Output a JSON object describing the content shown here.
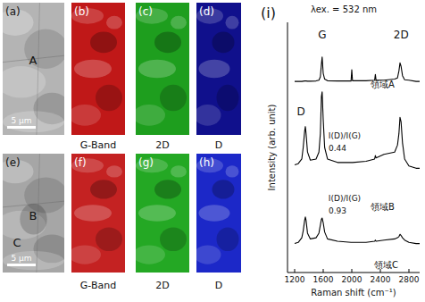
{
  "panels": [
    {
      "label": "(a)",
      "kind": "optical",
      "color": "#b4b4b4",
      "regions": [
        "A"
      ],
      "scale_bar": "5 μm"
    },
    {
      "label": "(b)",
      "kind": "map",
      "color": "#c01818",
      "caption": "G-Band"
    },
    {
      "label": "(c)",
      "kind": "map",
      "color": "#1e9e1e",
      "caption": "2D"
    },
    {
      "label": "(d)",
      "kind": "map",
      "color": "#10108c",
      "caption": "D"
    },
    {
      "label": "(e)",
      "kind": "optical",
      "color": "#a6a6a6",
      "regions": [
        "B",
        "C"
      ],
      "scale_bar": "5 μm"
    },
    {
      "label": "(f)",
      "kind": "map",
      "color": "#c42222",
      "caption": "G-Band"
    },
    {
      "label": "(g)",
      "kind": "map",
      "color": "#24a824",
      "caption": "2D"
    },
    {
      "label": "(h)",
      "kind": "map",
      "color": "#1c28c8",
      "caption": "D"
    }
  ],
  "chart_label": "(i)",
  "chart_data": {
    "type": "line",
    "title": "λex. = 532 nm",
    "x_label": "Raman shift (cm⁻¹)",
    "y_label": "Intensity (arb. unit)",
    "xlim": [
      1100,
      2950
    ],
    "ylim": [
      -0.8,
      10
    ],
    "xticks": [
      1200,
      1600,
      2000,
      2400,
      2800
    ],
    "tick_labels": "x",
    "x": [
      1200,
      1250,
      1300,
      1320,
      1340,
      1350,
      1360,
      1380,
      1420,
      1500,
      1540,
      1560,
      1575,
      1585,
      1600,
      1620,
      1660,
      1800,
      1990,
      2000,
      2010,
      2200,
      2320,
      2330,
      2340,
      2450,
      2600,
      2640,
      2660,
      2675,
      2690,
      2710,
      2740,
      2800,
      2900,
      2950
    ],
    "series": [
      {
        "color": "#000000",
        "values": [
          7.45,
          7.45,
          7.45,
          7.46,
          7.47,
          7.47,
          7.47,
          7.46,
          7.46,
          7.47,
          7.5,
          7.65,
          8.2,
          8.5,
          7.8,
          7.55,
          7.48,
          7.47,
          7.47,
          7.95,
          7.48,
          7.48,
          7.5,
          7.75,
          7.5,
          7.5,
          7.55,
          7.6,
          7.9,
          8.25,
          8.1,
          7.7,
          7.52,
          7.5,
          7.45,
          7.45
        ]
      },
      {
        "color": "#000000",
        "values": [
          3.85,
          3.9,
          4.1,
          4.6,
          5.3,
          5.5,
          5.2,
          4.4,
          4.05,
          4.1,
          4.4,
          5.2,
          6.8,
          7.0,
          5.8,
          4.6,
          4.1,
          3.95,
          3.95,
          3.95,
          3.95,
          4.0,
          4.1,
          4.25,
          4.15,
          4.3,
          4.4,
          4.7,
          5.2,
          5.9,
          5.7,
          4.8,
          4.1,
          3.8,
          3.7,
          3.7
        ]
      },
      {
        "color": "#000000",
        "values": [
          0.45,
          0.5,
          0.7,
          1.0,
          1.45,
          1.6,
          1.45,
          0.9,
          0.65,
          0.7,
          0.9,
          1.25,
          1.5,
          1.55,
          1.35,
          0.95,
          0.65,
          0.55,
          0.5,
          0.5,
          0.5,
          0.5,
          0.55,
          0.6,
          0.55,
          0.6,
          0.65,
          0.7,
          0.75,
          0.85,
          0.8,
          0.7,
          0.6,
          0.5,
          0.45,
          0.45
        ]
      }
    ],
    "annotations": [
      {
        "text": "G",
        "x": 1585,
        "y": 9.3
      },
      {
        "text": "2D",
        "x": 2690,
        "y": 9.3
      },
      {
        "text": "D",
        "x": 1290,
        "y": 6.0
      },
      {
        "text": "I(D)/I(G)",
        "x": 1900,
        "y": 5.0
      },
      {
        "text": "0.44",
        "x": 1800,
        "y": 4.45
      },
      {
        "text": "I(D)/I(G)",
        "x": 1900,
        "y": 2.3
      },
      {
        "text": "0.93",
        "x": 1800,
        "y": 1.75
      },
      {
        "text": "領域A",
        "x": 2430,
        "y": 7.2
      },
      {
        "text": "領域B",
        "x": 2430,
        "y": 1.9
      },
      {
        "text": "領域C",
        "x": 2480,
        "y": -0.6
      }
    ]
  }
}
